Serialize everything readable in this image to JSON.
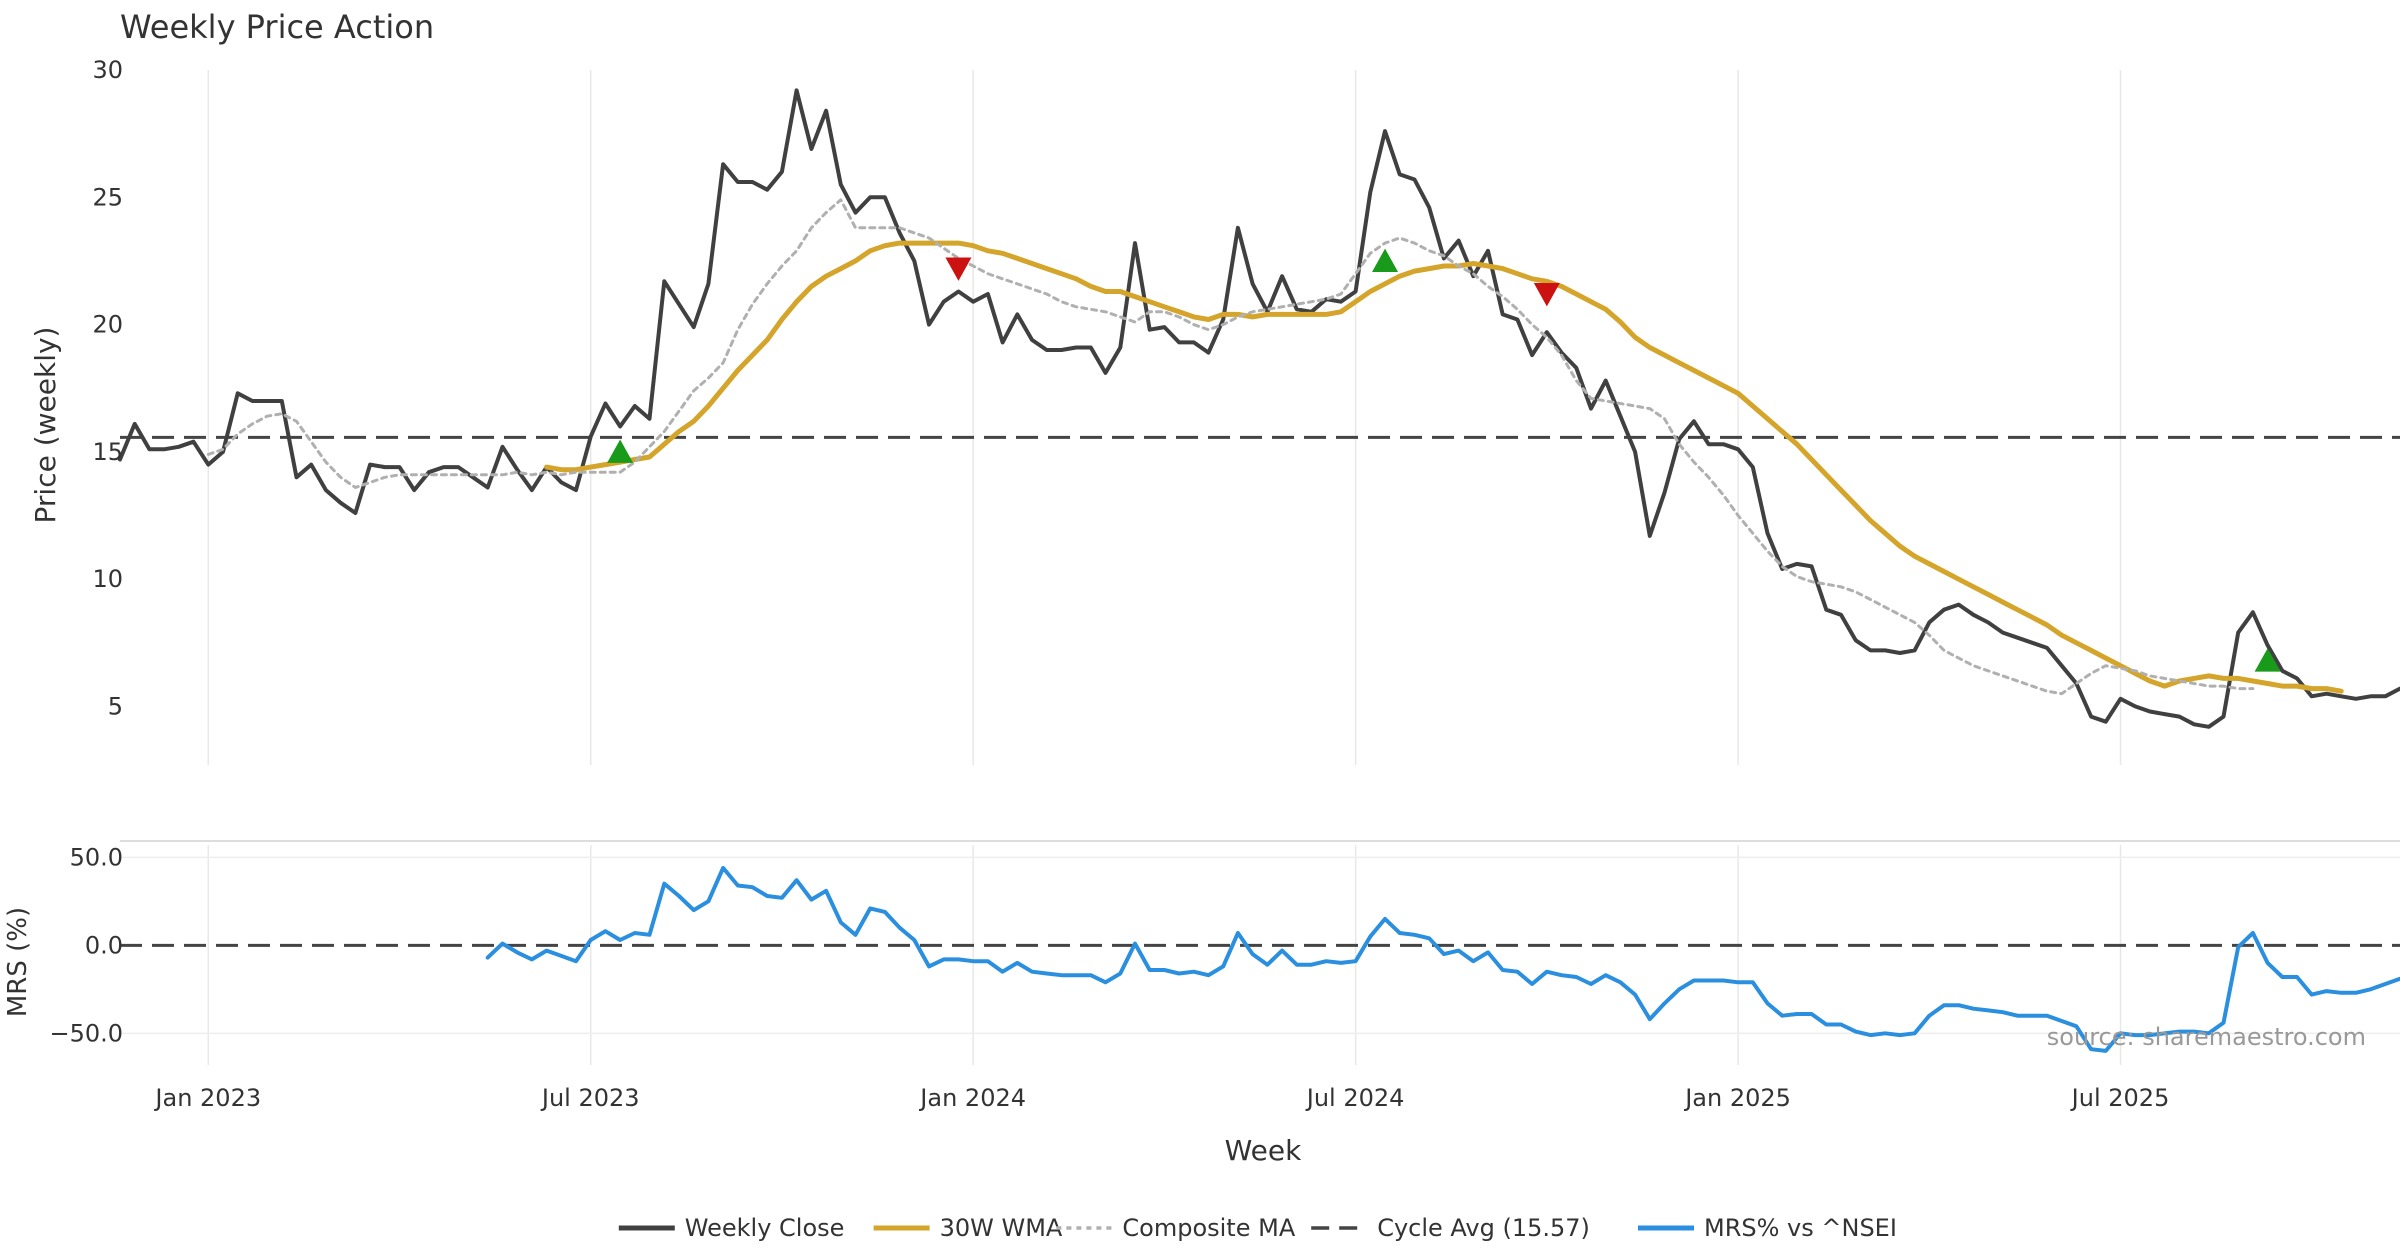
{
  "chart_data": [
    {
      "type": "line",
      "title": "Weekly Price Action",
      "ylabel": "Price (weekly)",
      "ylim": [
        2.7,
        30
      ],
      "yticks": [
        "5",
        "10",
        "15",
        "20",
        "25",
        "30"
      ],
      "x_start": "2022-11-18",
      "x_step_days": 7,
      "series": [
        {
          "name": "Weekly Close",
          "color": "#404040",
          "style": "solid",
          "values": [
            14.7,
            16.1,
            15.1,
            15.1,
            15.2,
            15.4,
            14.5,
            15.0,
            17.3,
            17.0,
            17.0,
            17.0,
            14.0,
            14.5,
            13.5,
            13.0,
            12.6,
            14.5,
            14.4,
            14.4,
            13.5,
            14.2,
            14.4,
            14.4,
            14.0,
            13.6,
            15.2,
            14.3,
            13.5,
            14.4,
            13.8,
            13.5,
            15.6,
            16.9,
            16.0,
            16.8,
            16.3,
            21.7,
            20.8,
            19.9,
            21.6,
            26.3,
            25.6,
            25.6,
            25.3,
            26.0,
            29.2,
            26.9,
            28.4,
            25.5,
            24.4,
            25.0,
            25.0,
            23.6,
            22.5,
            20.0,
            20.9,
            21.3,
            20.9,
            21.2,
            19.3,
            20.4,
            19.4,
            19.0,
            19.0,
            19.1,
            19.1,
            18.1,
            19.1,
            23.2,
            19.8,
            19.9,
            19.3,
            19.3,
            18.9,
            20.2,
            23.8,
            21.6,
            20.5,
            21.9,
            20.6,
            20.5,
            21.0,
            20.9,
            21.3,
            25.2,
            27.6,
            25.9,
            25.7,
            24.6,
            22.6,
            23.3,
            21.9,
            22.9,
            20.4,
            20.2,
            18.8,
            19.7,
            18.9,
            18.3,
            16.7,
            17.8,
            16.4,
            15.0,
            11.7,
            13.4,
            15.5,
            16.2,
            15.3,
            15.3,
            15.1,
            14.4,
            11.8,
            10.4,
            10.6,
            10.5,
            8.8,
            8.6,
            7.6,
            7.2,
            7.2,
            7.1,
            7.2,
            8.3,
            8.8,
            9.0,
            8.6,
            8.3,
            7.9,
            7.7,
            7.5,
            7.3,
            6.6,
            5.9,
            4.6,
            4.4,
            5.3,
            5.0,
            4.8,
            4.7,
            4.6,
            4.3,
            4.2,
            4.6,
            7.9,
            8.7,
            7.4,
            6.4,
            6.1,
            5.4,
            5.5,
            5.4,
            5.3,
            5.4,
            5.4,
            5.7
          ]
        },
        {
          "name": "30W WMA",
          "color": "#d4a52a",
          "style": "solid",
          "start_index": 29,
          "values": [
            14.4,
            14.3,
            14.3,
            14.4,
            14.5,
            14.6,
            14.7,
            14.8,
            15.3,
            15.8,
            16.2,
            16.8,
            17.5,
            18.2,
            18.8,
            19.4,
            20.2,
            20.9,
            21.5,
            21.9,
            22.2,
            22.5,
            22.9,
            23.1,
            23.2,
            23.2,
            23.2,
            23.2,
            23.2,
            23.1,
            22.9,
            22.8,
            22.6,
            22.4,
            22.2,
            22.0,
            21.8,
            21.5,
            21.3,
            21.3,
            21.1,
            20.9,
            20.7,
            20.5,
            20.3,
            20.2,
            20.4,
            20.4,
            20.3,
            20.4,
            20.4,
            20.4,
            20.4,
            20.4,
            20.5,
            20.9,
            21.3,
            21.6,
            21.9,
            22.1,
            22.2,
            22.3,
            22.3,
            22.4,
            22.3,
            22.2,
            22.0,
            21.8,
            21.7,
            21.5,
            21.2,
            20.9,
            20.6,
            20.1,
            19.5,
            19.1,
            18.8,
            18.5,
            18.2,
            17.9,
            17.6,
            17.3,
            16.8,
            16.3,
            15.8,
            15.3,
            14.7,
            14.1,
            13.5,
            12.9,
            12.3,
            11.8,
            11.3,
            10.9,
            10.6,
            10.3,
            10.0,
            9.7,
            9.4,
            9.1,
            8.8,
            8.5,
            8.2,
            7.8,
            7.5,
            7.2,
            6.9,
            6.6,
            6.3,
            6.0,
            5.8,
            6.0,
            6.1,
            6.2,
            6.1,
            6.1,
            6.0,
            5.9,
            5.8,
            5.8,
            5.7,
            5.7,
            5.6
          ]
        },
        {
          "name": "Composite MA",
          "color": "#b0b0b0",
          "style": "dotted",
          "start_index": 6,
          "values": [
            14.9,
            15.1,
            15.7,
            16.1,
            16.4,
            16.5,
            16.2,
            15.4,
            14.6,
            14.0,
            13.6,
            13.8,
            14.0,
            14.1,
            14.1,
            14.1,
            14.1,
            14.1,
            14.1,
            14.1,
            14.1,
            14.2,
            14.1,
            14.2,
            14.1,
            14.2,
            14.2,
            14.2,
            14.2,
            14.6,
            15.2,
            15.8,
            16.6,
            17.4,
            17.9,
            18.5,
            19.8,
            20.8,
            21.6,
            22.3,
            22.9,
            23.8,
            24.4,
            24.9,
            23.8,
            23.8,
            23.8,
            23.8,
            23.6,
            23.4,
            23.0,
            22.6,
            22.3,
            22.0,
            21.8,
            21.6,
            21.4,
            21.2,
            20.9,
            20.7,
            20.6,
            20.5,
            20.3,
            20.1,
            20.5,
            20.5,
            20.3,
            20.0,
            19.8,
            20.0,
            20.3,
            20.5,
            20.6,
            20.7,
            20.8,
            20.9,
            21.0,
            21.2,
            22.0,
            22.8,
            23.2,
            23.4,
            23.2,
            22.9,
            22.7,
            22.3,
            22.0,
            21.5,
            21.1,
            20.6,
            20.0,
            19.5,
            18.8,
            17.8,
            17.1,
            17.0,
            16.9,
            16.8,
            16.7,
            16.3,
            15.3,
            14.6,
            14.0,
            13.3,
            12.5,
            11.8,
            11.1,
            10.5,
            10.1,
            9.9,
            9.8,
            9.7,
            9.5,
            9.2,
            8.9,
            8.6,
            8.3,
            7.8,
            7.2,
            6.9,
            6.6,
            6.4,
            6.2,
            6.0,
            5.8,
            5.6,
            5.5,
            5.9,
            6.3,
            6.6,
            6.5,
            6.4,
            6.2,
            6.1,
            6.0,
            5.9,
            5.8,
            5.8,
            5.7,
            5.7
          ]
        },
        {
          "name": "Cycle Avg (15.57)",
          "color": "#444444",
          "style": "dashed",
          "constant": 15.57
        }
      ],
      "markers": [
        {
          "type": "buy",
          "index": 34,
          "y": 15.0,
          "color": "#1a9a1a"
        },
        {
          "type": "sell",
          "index": 57,
          "y": 22.2,
          "color": "#cc1111"
        },
        {
          "type": "buy",
          "index": 86,
          "y": 22.5,
          "color": "#1a9a1a"
        },
        {
          "type": "sell",
          "index": 97,
          "y": 21.2,
          "color": "#cc1111"
        },
        {
          "type": "buy",
          "index": 146,
          "y": 6.8,
          "color": "#1a9a1a"
        }
      ],
      "grid": true
    },
    {
      "type": "line",
      "ylabel": "MRS (%)",
      "ylim": [
        -68,
        57
      ],
      "yticks": [
        "50.0",
        "0.0",
        "−50.0"
      ],
      "series": [
        {
          "name": "MRS% vs ^NSEI",
          "color": "#2b8fe0",
          "style": "solid",
          "start_index": 25,
          "values": [
            -7,
            1,
            -4,
            -8,
            -3,
            -6,
            -9,
            3,
            8,
            3,
            7,
            6,
            35,
            28,
            20,
            25,
            44,
            34,
            33,
            28,
            27,
            37,
            26,
            31,
            13,
            6,
            21,
            19,
            10,
            3,
            -12,
            -8,
            -8,
            -9,
            -9,
            -15,
            -10,
            -15,
            -16,
            -17,
            -17,
            -17,
            -21,
            -16,
            1,
            -14,
            -14,
            -16,
            -15,
            -17,
            -12,
            7,
            -5,
            -11,
            -3,
            -11,
            -11,
            -9,
            -10,
            -9,
            5,
            15,
            7,
            6,
            4,
            -5,
            -3,
            -9,
            -4,
            -14,
            -15,
            -22,
            -15,
            -17,
            -18,
            -22,
            -17,
            -21,
            -28,
            -42,
            -33,
            -25,
            -20,
            -20,
            -20,
            -21,
            -21,
            -33,
            -40,
            -39,
            -39,
            -45,
            -45,
            -49,
            -51,
            -50,
            -51,
            -50,
            -40,
            -34,
            -34,
            -36,
            -37,
            -38,
            -40,
            -40,
            -40,
            -43,
            -46,
            -59,
            -60,
            -50,
            -51,
            -51,
            -50,
            -49,
            -49,
            -50,
            -44,
            -1,
            7,
            -10,
            -18,
            -18,
            -28,
            -26,
            -27,
            -27,
            -25,
            -22,
            -19
          ]
        },
        {
          "name": "zero",
          "color": "#444444",
          "style": "dashed",
          "constant": 0
        }
      ],
      "grid": true
    }
  ],
  "x_axis": {
    "label": "Week",
    "ticks": [
      {
        "label": "Jan 2023",
        "index": 6
      },
      {
        "label": "Jul 2023",
        "index": 32
      },
      {
        "label": "Jan 2024",
        "index": 58
      },
      {
        "label": "Jul 2024",
        "index": 84
      },
      {
        "label": "Jan 2025",
        "index": 110
      },
      {
        "label": "Jul 2025",
        "index": 136
      }
    ]
  },
  "legend": {
    "placement": "bottom-center",
    "items": [
      {
        "label": "Weekly Close",
        "color": "#404040",
        "style": "solid"
      },
      {
        "label": "30W WMA",
        "color": "#d4a52a",
        "style": "solid"
      },
      {
        "label": "Composite MA",
        "color": "#b0b0b0",
        "style": "dotted"
      },
      {
        "label": "Cycle Avg (15.57)",
        "color": "#444444",
        "style": "dashed"
      },
      {
        "label": "MRS% vs ^NSEI",
        "color": "#2b8fe0",
        "style": "solid"
      }
    ]
  },
  "source": "source: sharemaestro.com"
}
